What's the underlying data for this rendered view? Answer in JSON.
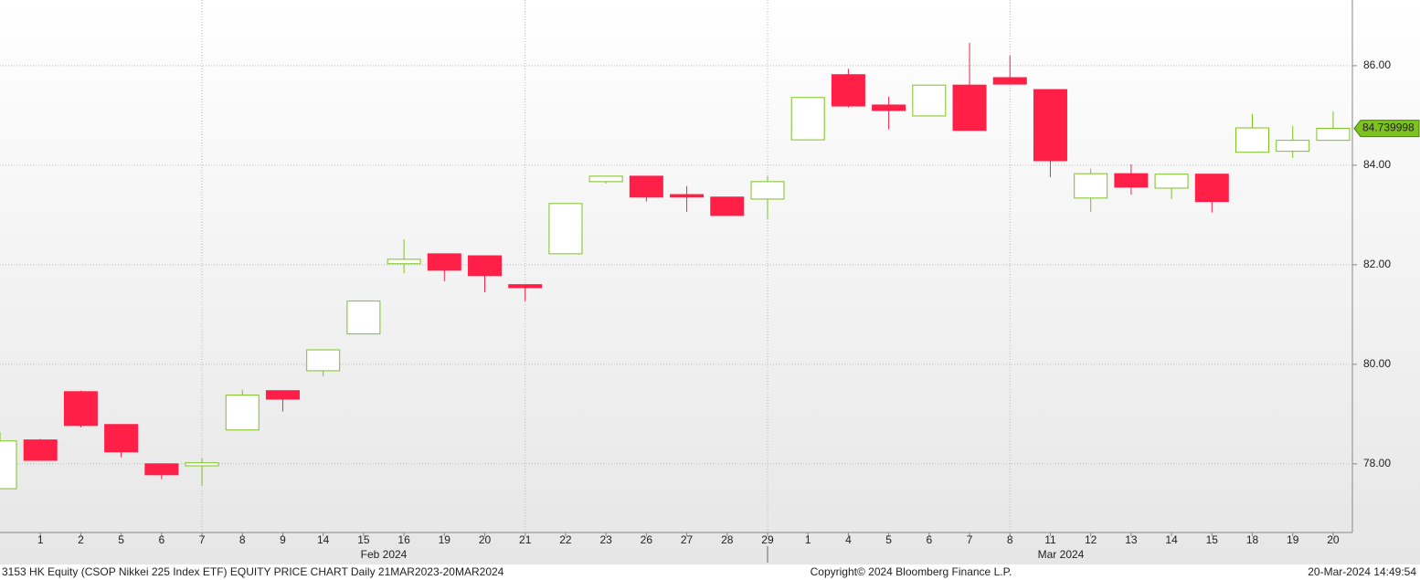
{
  "chart_data": {
    "type": "candlestick",
    "categories": [
      null,
      "1",
      "2",
      "5",
      "6",
      "7",
      "8",
      "9",
      "14",
      "15",
      "16",
      "19",
      "20",
      "21",
      "22",
      "23",
      "26",
      "27",
      "28",
      "29",
      "1",
      "4",
      "5",
      "6",
      "7",
      "8",
      "11",
      "12",
      "13",
      "14",
      "15",
      "18",
      "19",
      "20"
    ],
    "open": [
      77.5,
      78.48,
      79.45,
      78.79,
      78.0,
      77.96,
      78.68,
      79.47,
      79.87,
      80.61,
      82.02,
      82.22,
      82.18,
      81.6,
      82.22,
      83.67,
      83.78,
      83.41,
      83.36,
      83.32,
      84.51,
      85.82,
      85.21,
      84.99,
      85.61,
      85.76,
      85.52,
      83.34,
      83.83,
      83.54,
      83.82,
      84.26,
      84.28,
      84.5
    ],
    "high": [
      78.64,
      78.5,
      79.47,
      78.79,
      78.0,
      78.11,
      79.49,
      79.47,
      80.29,
      81.27,
      82.51,
      82.22,
      82.18,
      81.6,
      83.23,
      83.78,
      83.78,
      83.58,
      83.36,
      83.78,
      85.36,
      85.94,
      85.38,
      85.61,
      86.46,
      86.2,
      85.52,
      83.93,
      84.02,
      83.82,
      83.82,
      85.03,
      84.79,
      85.08
    ],
    "low": [
      77.5,
      78.07,
      78.73,
      78.13,
      77.69,
      77.56,
      78.68,
      79.05,
      79.76,
      80.61,
      81.83,
      81.67,
      81.45,
      81.27,
      82.22,
      83.63,
      83.27,
      83.06,
      82.99,
      82.92,
      84.51,
      85.16,
      84.72,
      84.99,
      84.7,
      85.63,
      83.76,
      83.06,
      83.41,
      83.32,
      83.05,
      84.26,
      84.15,
      84.5
    ],
    "close": [
      78.46,
      78.07,
      78.77,
      78.24,
      77.78,
      78.02,
      79.38,
      79.3,
      80.29,
      81.27,
      82.11,
      81.89,
      81.78,
      81.54,
      83.23,
      83.78,
      83.36,
      83.36,
      82.99,
      83.67,
      85.36,
      85.19,
      85.1,
      85.61,
      84.7,
      85.63,
      84.09,
      83.83,
      83.56,
      83.82,
      83.27,
      84.75,
      84.5,
      84.739998
    ],
    "up_color": "#7dc21e",
    "down_color": "#ff1f47",
    "last_price": 84.739998,
    "month_labels": [
      "Feb 2024",
      "Mar 2024"
    ],
    "ylim": [
      76.62,
      87.32
    ],
    "yticks": [
      {
        "value": 78,
        "label": "78.00"
      },
      {
        "value": 80,
        "label": "80.00"
      },
      {
        "value": 82,
        "label": "82.00"
      },
      {
        "value": 84,
        "label": "84.00"
      },
      {
        "value": 86,
        "label": "86.00"
      }
    ],
    "grid": true,
    "footer_left": "3153 HK Equity (CSOP Nikkei 225 Index ETF) EQUITY PRICE CHART  Daily 21MAR2023-20MAR2024",
    "footer_center": "Copyright© 2024 Bloomberg Finance L.P.",
    "footer_right": "20-Mar-2024 14:49:54"
  }
}
